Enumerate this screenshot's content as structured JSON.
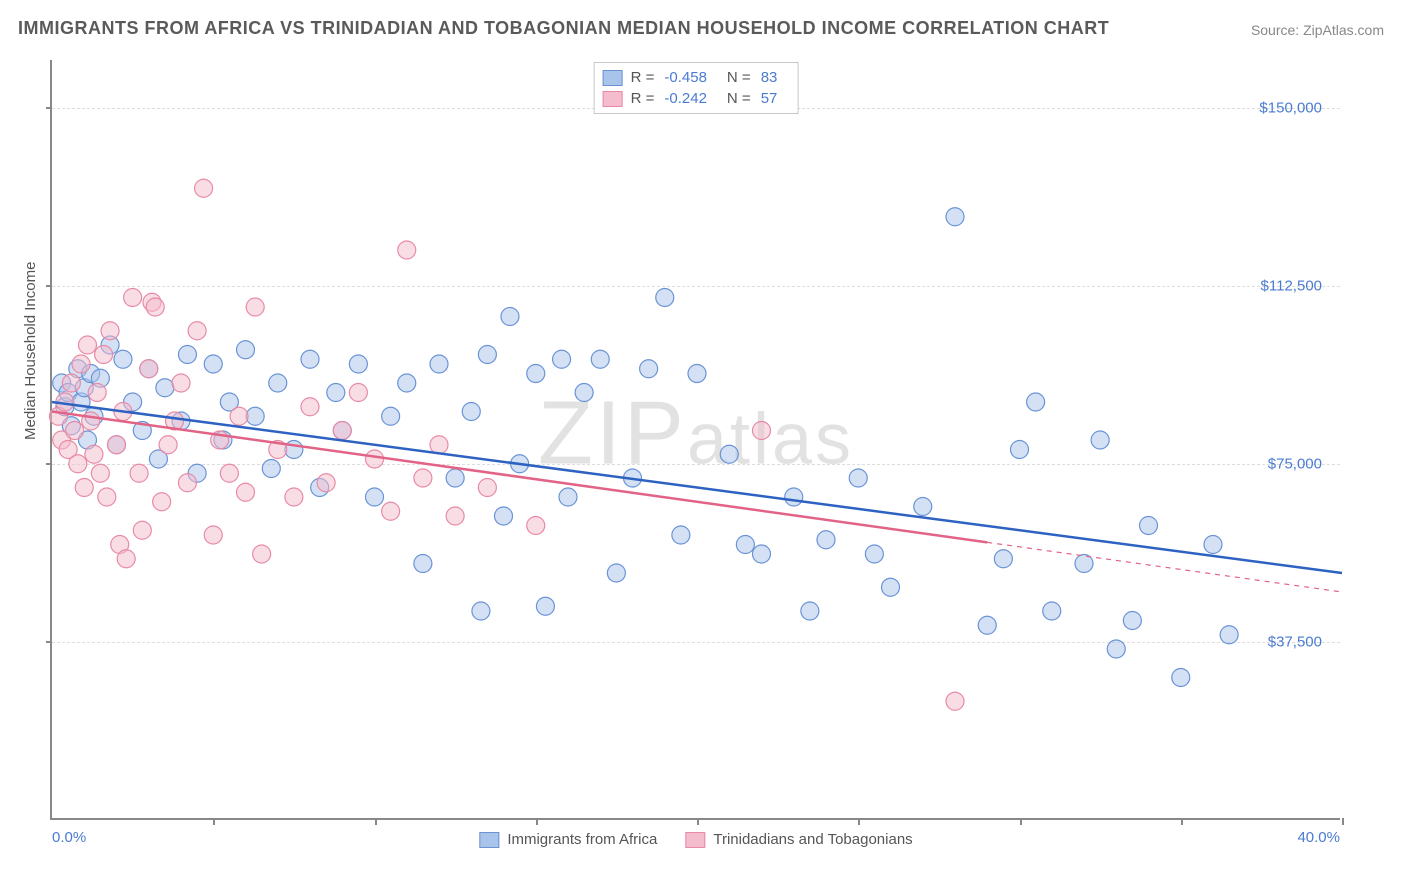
{
  "title": "IMMIGRANTS FROM AFRICA VS TRINIDADIAN AND TOBAGONIAN MEDIAN HOUSEHOLD INCOME CORRELATION CHART",
  "source": "Source: ZipAtlas.com",
  "watermark": "ZIPatlas",
  "ylabel": "Median Household Income",
  "chart": {
    "type": "scatter",
    "background_color": "#ffffff",
    "grid_color": "#dddddd",
    "axis_color": "#888888",
    "text_color": "#555555",
    "value_color": "#4a7bd0",
    "xlim": [
      0,
      40
    ],
    "ylim": [
      0,
      160000
    ],
    "xticks_pct": [
      0,
      5,
      10,
      15,
      20,
      25,
      30,
      35,
      40
    ],
    "yticks": [
      37500,
      75000,
      112500,
      150000
    ],
    "ytick_labels": [
      "$37,500",
      "$75,000",
      "$112,500",
      "$150,000"
    ],
    "x_min_label": "0.0%",
    "x_max_label": "40.0%",
    "marker_radius": 9,
    "marker_opacity": 0.5,
    "line_width": 2.5,
    "series": [
      {
        "name": "Immigrants from Africa",
        "color_fill": "#a9c4eb",
        "color_stroke": "#6a93d6",
        "line_color": "#2d62c2",
        "r": -0.458,
        "n": 83,
        "trend": {
          "x1": 0,
          "y1": 88000,
          "x2": 40,
          "y2": 52000,
          "dashed_from": null
        },
        "points": [
          [
            0.3,
            92000
          ],
          [
            0.4,
            87000
          ],
          [
            0.5,
            90000
          ],
          [
            0.6,
            83000
          ],
          [
            0.8,
            95000
          ],
          [
            0.9,
            88000
          ],
          [
            1.0,
            91000
          ],
          [
            1.1,
            80000
          ],
          [
            1.2,
            94000
          ],
          [
            1.3,
            85000
          ],
          [
            1.5,
            93000
          ],
          [
            1.8,
            100000
          ],
          [
            2.0,
            79000
          ],
          [
            2.2,
            97000
          ],
          [
            2.5,
            88000
          ],
          [
            2.8,
            82000
          ],
          [
            3.0,
            95000
          ],
          [
            3.3,
            76000
          ],
          [
            3.5,
            91000
          ],
          [
            4.0,
            84000
          ],
          [
            4.2,
            98000
          ],
          [
            4.5,
            73000
          ],
          [
            5.0,
            96000
          ],
          [
            5.3,
            80000
          ],
          [
            5.5,
            88000
          ],
          [
            6.0,
            99000
          ],
          [
            6.3,
            85000
          ],
          [
            6.8,
            74000
          ],
          [
            7.0,
            92000
          ],
          [
            7.5,
            78000
          ],
          [
            8.0,
            97000
          ],
          [
            8.3,
            70000
          ],
          [
            8.8,
            90000
          ],
          [
            9.0,
            82000
          ],
          [
            9.5,
            96000
          ],
          [
            10.0,
            68000
          ],
          [
            10.5,
            85000
          ],
          [
            11.0,
            92000
          ],
          [
            11.5,
            54000
          ],
          [
            12.0,
            96000
          ],
          [
            12.5,
            72000
          ],
          [
            13.0,
            86000
          ],
          [
            13.3,
            44000
          ],
          [
            13.5,
            98000
          ],
          [
            14.0,
            64000
          ],
          [
            14.2,
            106000
          ],
          [
            14.5,
            75000
          ],
          [
            15.0,
            94000
          ],
          [
            15.3,
            45000
          ],
          [
            15.8,
            97000
          ],
          [
            16.0,
            68000
          ],
          [
            16.5,
            90000
          ],
          [
            17.0,
            97000
          ],
          [
            17.5,
            52000
          ],
          [
            18.0,
            72000
          ],
          [
            18.5,
            95000
          ],
          [
            19.0,
            110000
          ],
          [
            19.5,
            60000
          ],
          [
            20.0,
            94000
          ],
          [
            21.0,
            77000
          ],
          [
            21.5,
            58000
          ],
          [
            22.0,
            56000
          ],
          [
            23.0,
            68000
          ],
          [
            23.5,
            44000
          ],
          [
            24.0,
            59000
          ],
          [
            25.0,
            72000
          ],
          [
            25.5,
            56000
          ],
          [
            26.0,
            49000
          ],
          [
            27.0,
            66000
          ],
          [
            28.0,
            127000
          ],
          [
            29.0,
            41000
          ],
          [
            29.5,
            55000
          ],
          [
            30.0,
            78000
          ],
          [
            30.5,
            88000
          ],
          [
            31.0,
            44000
          ],
          [
            32.0,
            54000
          ],
          [
            32.5,
            80000
          ],
          [
            33.0,
            36000
          ],
          [
            33.5,
            42000
          ],
          [
            34.0,
            62000
          ],
          [
            35.0,
            30000
          ],
          [
            36.0,
            58000
          ],
          [
            36.5,
            39000
          ]
        ]
      },
      {
        "name": "Trinidadians and Tobagonians",
        "color_fill": "#f4bccc",
        "color_stroke": "#e88aa6",
        "line_color": "#e26385",
        "r": -0.242,
        "n": 57,
        "trend": {
          "x1": 0,
          "y1": 86000,
          "x2": 40,
          "y2": 48000,
          "dashed_from": 29
        },
        "points": [
          [
            0.2,
            85000
          ],
          [
            0.3,
            80000
          ],
          [
            0.4,
            88000
          ],
          [
            0.5,
            78000
          ],
          [
            0.6,
            92000
          ],
          [
            0.7,
            82000
          ],
          [
            0.8,
            75000
          ],
          [
            0.9,
            96000
          ],
          [
            1.0,
            70000
          ],
          [
            1.1,
            100000
          ],
          [
            1.2,
            84000
          ],
          [
            1.3,
            77000
          ],
          [
            1.4,
            90000
          ],
          [
            1.5,
            73000
          ],
          [
            1.6,
            98000
          ],
          [
            1.7,
            68000
          ],
          [
            1.8,
            103000
          ],
          [
            2.0,
            79000
          ],
          [
            2.1,
            58000
          ],
          [
            2.2,
            86000
          ],
          [
            2.3,
            55000
          ],
          [
            2.5,
            110000
          ],
          [
            2.7,
            73000
          ],
          [
            2.8,
            61000
          ],
          [
            3.0,
            95000
          ],
          [
            3.1,
            109000
          ],
          [
            3.2,
            108000
          ],
          [
            3.4,
            67000
          ],
          [
            3.6,
            79000
          ],
          [
            3.8,
            84000
          ],
          [
            4.0,
            92000
          ],
          [
            4.2,
            71000
          ],
          [
            4.5,
            103000
          ],
          [
            4.7,
            133000
          ],
          [
            5.0,
            60000
          ],
          [
            5.2,
            80000
          ],
          [
            5.5,
            73000
          ],
          [
            5.8,
            85000
          ],
          [
            6.0,
            69000
          ],
          [
            6.3,
            108000
          ],
          [
            6.5,
            56000
          ],
          [
            7.0,
            78000
          ],
          [
            7.5,
            68000
          ],
          [
            8.0,
            87000
          ],
          [
            8.5,
            71000
          ],
          [
            9.0,
            82000
          ],
          [
            9.5,
            90000
          ],
          [
            10.0,
            76000
          ],
          [
            10.5,
            65000
          ],
          [
            11.0,
            120000
          ],
          [
            11.5,
            72000
          ],
          [
            12.0,
            79000
          ],
          [
            12.5,
            64000
          ],
          [
            13.5,
            70000
          ],
          [
            15.0,
            62000
          ],
          [
            22.0,
            82000
          ],
          [
            28.0,
            25000
          ]
        ]
      }
    ]
  }
}
